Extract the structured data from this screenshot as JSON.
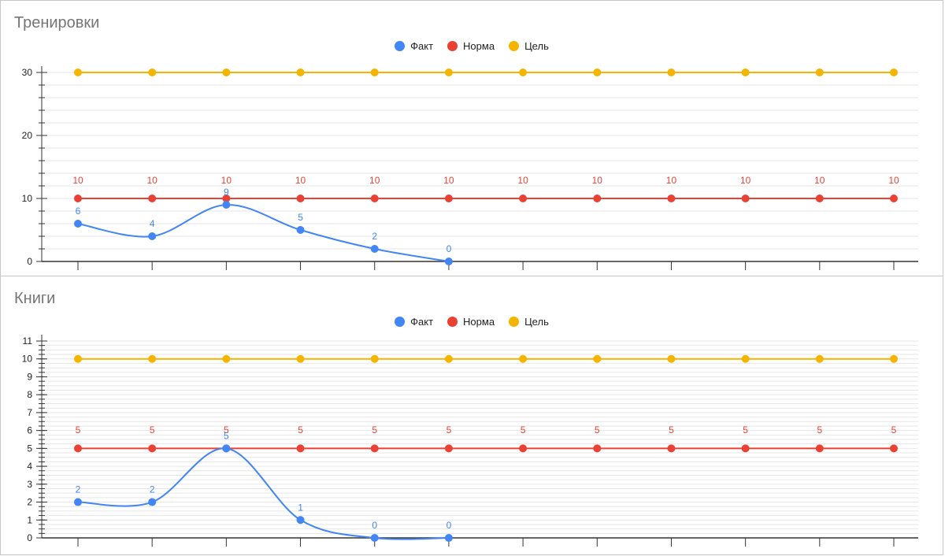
{
  "colors": {
    "fact": "#4285f4",
    "norm": "#e94235",
    "goal": "#f4b400",
    "grid": "#e6e6e6",
    "axis": "#333333"
  },
  "chart_data": [
    {
      "type": "line",
      "title": "Тренировки",
      "legend": "top-center",
      "xlabel": "",
      "ylabel": "",
      "ylim": [
        0,
        30
      ],
      "yticks": [
        0,
        10,
        20,
        30
      ],
      "y_minor_step": 2,
      "points": 12,
      "series": [
        {
          "name": "Факт",
          "values": [
            6,
            4,
            9,
            5,
            2,
            0
          ],
          "data_labels": true
        },
        {
          "name": "Норма",
          "values": [
            10,
            10,
            10,
            10,
            10,
            10,
            10,
            10,
            10,
            10,
            10,
            10
          ],
          "data_labels": true
        },
        {
          "name": "Цель",
          "values": [
            30,
            30,
            30,
            30,
            30,
            30,
            30,
            30,
            30,
            30,
            30,
            30
          ],
          "data_labels": false
        }
      ]
    },
    {
      "type": "line",
      "title": "Книги",
      "legend": "top-center",
      "xlabel": "",
      "ylabel": "",
      "ylim": [
        0,
        11
      ],
      "yticks": [
        0,
        1,
        2,
        3,
        4,
        5,
        6,
        7,
        8,
        9,
        10,
        11
      ],
      "y_minor_step": 0.25,
      "points": 12,
      "series": [
        {
          "name": "Факт",
          "values": [
            2,
            2,
            5,
            1,
            0,
            0
          ],
          "data_labels": true
        },
        {
          "name": "Норма",
          "values": [
            5,
            5,
            5,
            5,
            5,
            5,
            5,
            5,
            5,
            5,
            5,
            5
          ],
          "data_labels": true
        },
        {
          "name": "Цель",
          "values": [
            10,
            10,
            10,
            10,
            10,
            10,
            10,
            10,
            10,
            10,
            10,
            10
          ],
          "data_labels": false
        }
      ]
    }
  ]
}
